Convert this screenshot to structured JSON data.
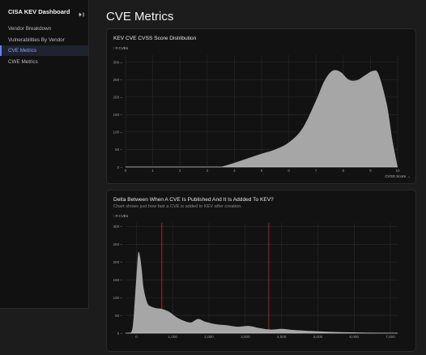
{
  "sidebar": {
    "title": "CISA KEV Dashboard",
    "collapse_icon": "collapse-sidebar-icon",
    "items": [
      {
        "label": "Vendor Breakdown",
        "active": false
      },
      {
        "label": "Vulnerabilities By Vendor",
        "active": false
      },
      {
        "label": "CVE Metrics",
        "active": true
      },
      {
        "label": "CWE Metrics",
        "active": false
      }
    ]
  },
  "page": {
    "title": "CVE Metrics"
  },
  "colors": {
    "area_fill": "#a6a6a6",
    "grid": "#2b2b2b",
    "rule": "#d2372f",
    "accent": "#6b7fff"
  },
  "charts": {
    "cvss": {
      "title": "KEV CVE CVSS Score Distribution"
    },
    "delta": {
      "title": "Delta Between When A CVE Is Published And It Is Addded To KEV?",
      "subtitle": "Chart shows just how fast a CVE is added to KEV after creation."
    }
  },
  "chart_data": [
    {
      "type": "area",
      "title": "KEV CVE CVSS Score Distribution",
      "xlabel": "CVSS Score →",
      "ylabel": "↑ # CVEs",
      "xlim": [
        0,
        10
      ],
      "ylim": [
        0,
        320
      ],
      "x_ticks": [
        0,
        1,
        2,
        3,
        4,
        5,
        6,
        7,
        8,
        9,
        10
      ],
      "y_ticks": [
        0,
        50,
        100,
        150,
        200,
        250,
        300
      ],
      "grid": true,
      "series": [
        {
          "x": [
            3.5,
            4.0,
            4.5,
            5.0,
            5.5,
            6.0,
            6.5,
            7.0,
            7.3,
            7.6,
            7.9,
            8.2,
            8.5,
            8.8,
            9.1,
            9.3,
            9.6,
            9.8,
            10.0
          ],
          "y": [
            0,
            12,
            25,
            38,
            50,
            70,
            110,
            190,
            245,
            275,
            272,
            250,
            248,
            262,
            275,
            265,
            180,
            80,
            0
          ]
        }
      ]
    },
    {
      "type": "area",
      "title": "Delta Between When A CVE Is Published And It Is Addded To KEV?",
      "xlabel": "",
      "ylabel": "↑ # CVEs",
      "xlim": [
        -300,
        7200
      ],
      "ylim": [
        0,
        310
      ],
      "x_ticks": [
        0,
        1000,
        2000,
        3000,
        4000,
        5000,
        6000,
        7000
      ],
      "x_tick_labels": [
        "0",
        "1,000",
        "2,000",
        "3,000",
        "4,000",
        "5,000",
        "6,000",
        "7,000"
      ],
      "y_ticks": [
        0,
        50,
        100,
        150,
        200,
        250,
        300
      ],
      "rule_lines_x": [
        700,
        3650
      ],
      "grid": true,
      "series": [
        {
          "x": [
            -200,
            -100,
            0,
            50,
            100,
            150,
            200,
            300,
            400,
            550,
            700,
            900,
            1100,
            1300,
            1500,
            1700,
            1900,
            2200,
            2500,
            2800,
            3100,
            3400,
            3700,
            4000,
            4300,
            4600,
            5000,
            5500,
            6000,
            6500,
            7000
          ],
          "y": [
            0,
            20,
            160,
            225,
            215,
            175,
            125,
            85,
            75,
            70,
            68,
            60,
            45,
            35,
            30,
            40,
            32,
            25,
            22,
            18,
            20,
            14,
            10,
            12,
            9,
            7,
            5,
            3,
            2,
            1,
            0
          ]
        }
      ]
    }
  ]
}
